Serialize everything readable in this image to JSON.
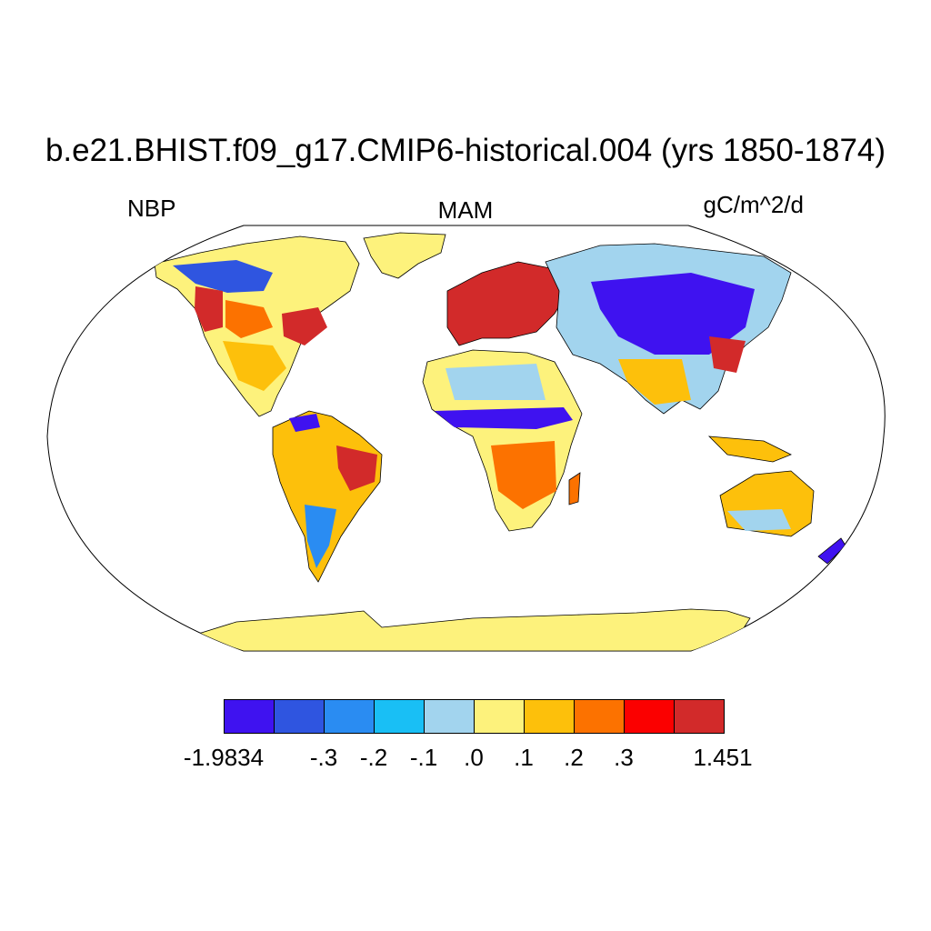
{
  "title": "b.e21.BHIST.f09_g17.CMIP6-historical.004 (yrs 1850-1874)",
  "left_label": "NBP",
  "center_label": "MAM",
  "right_label": "gC/m^2/d",
  "colorbar": {
    "colors": [
      "#3f12f0",
      "#2f55e0",
      "#2a8cf2",
      "#19bff5",
      "#a2d4ee",
      "#fdf27c",
      "#fdc00b",
      "#fc7200",
      "#fb0000",
      "#d22a2a"
    ],
    "labels": [
      "-1.9834",
      "-.3",
      "-.2",
      "-.1",
      ".0",
      ".1",
      ".2",
      ".3",
      "1.451"
    ]
  },
  "map": {
    "projection": "Robinson",
    "ocean_color": "#ffffff",
    "coastline_color": "#000000"
  }
}
